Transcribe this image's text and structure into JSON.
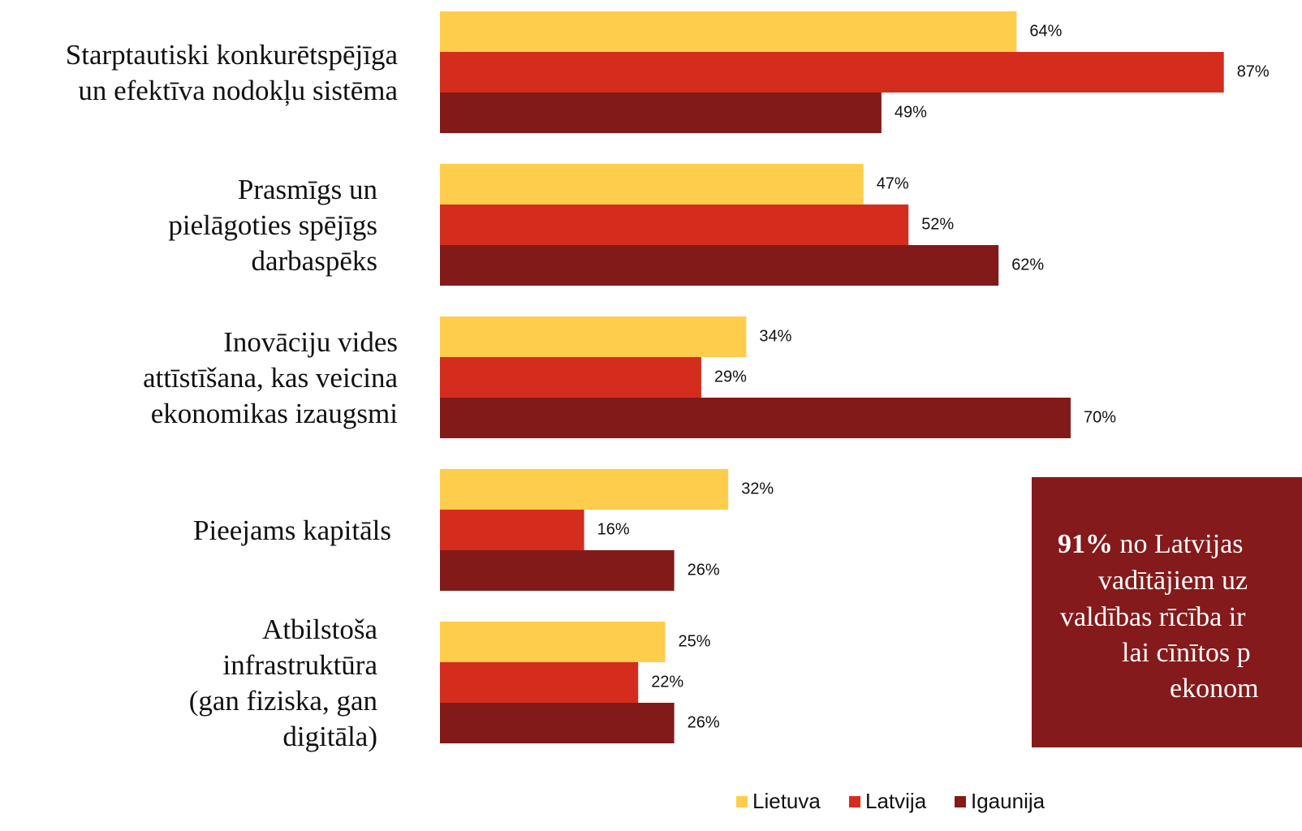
{
  "chart_data": {
    "type": "bar",
    "orientation": "horizontal",
    "categories": [
      [
        "Starptautiski konkurētspējīga",
        "un efektīva nodokļu sistēma"
      ],
      [
        "Prasmīgs un",
        "pielāgoties spējīgs",
        "darbaspēks"
      ],
      [
        "Inovāciju vides",
        "attīstīšana, kas veicina",
        "ekonomikas izaugsmi"
      ],
      [
        "Pieejams kapitāls"
      ],
      [
        "Atbilstoša",
        "infrastruktūra",
        "(gan fiziska, gan",
        "digitāla)"
      ]
    ],
    "series": [
      {
        "name": "Lietuva",
        "color": "#fecd4b",
        "values": [
          64,
          47,
          34,
          32,
          25
        ],
        "value_labels": [
          "64%",
          "47%",
          "34%",
          "32%",
          "25%"
        ]
      },
      {
        "name": "Latvija",
        "color": "#d42d1d",
        "values": [
          87,
          52,
          29,
          16,
          22
        ],
        "value_labels": [
          "87%",
          "52%",
          "29%",
          "16%",
          "22%"
        ]
      },
      {
        "name": "Igaunija",
        "color": "#831a1a",
        "values": [
          49,
          62,
          70,
          26,
          26
        ],
        "value_labels": [
          "49%",
          "62%",
          "70%",
          "26%",
          "26%"
        ]
      }
    ],
    "xlim": [
      0,
      100
    ],
    "legend": "bottom",
    "callout": {
      "color": "#841a1b",
      "bold": "91%",
      "lines": [
        "no Latvijas",
        "vadītājiem uz",
        "valdības rīcība ir",
        "lai cīnītos p",
        "ekonom"
      ]
    }
  }
}
